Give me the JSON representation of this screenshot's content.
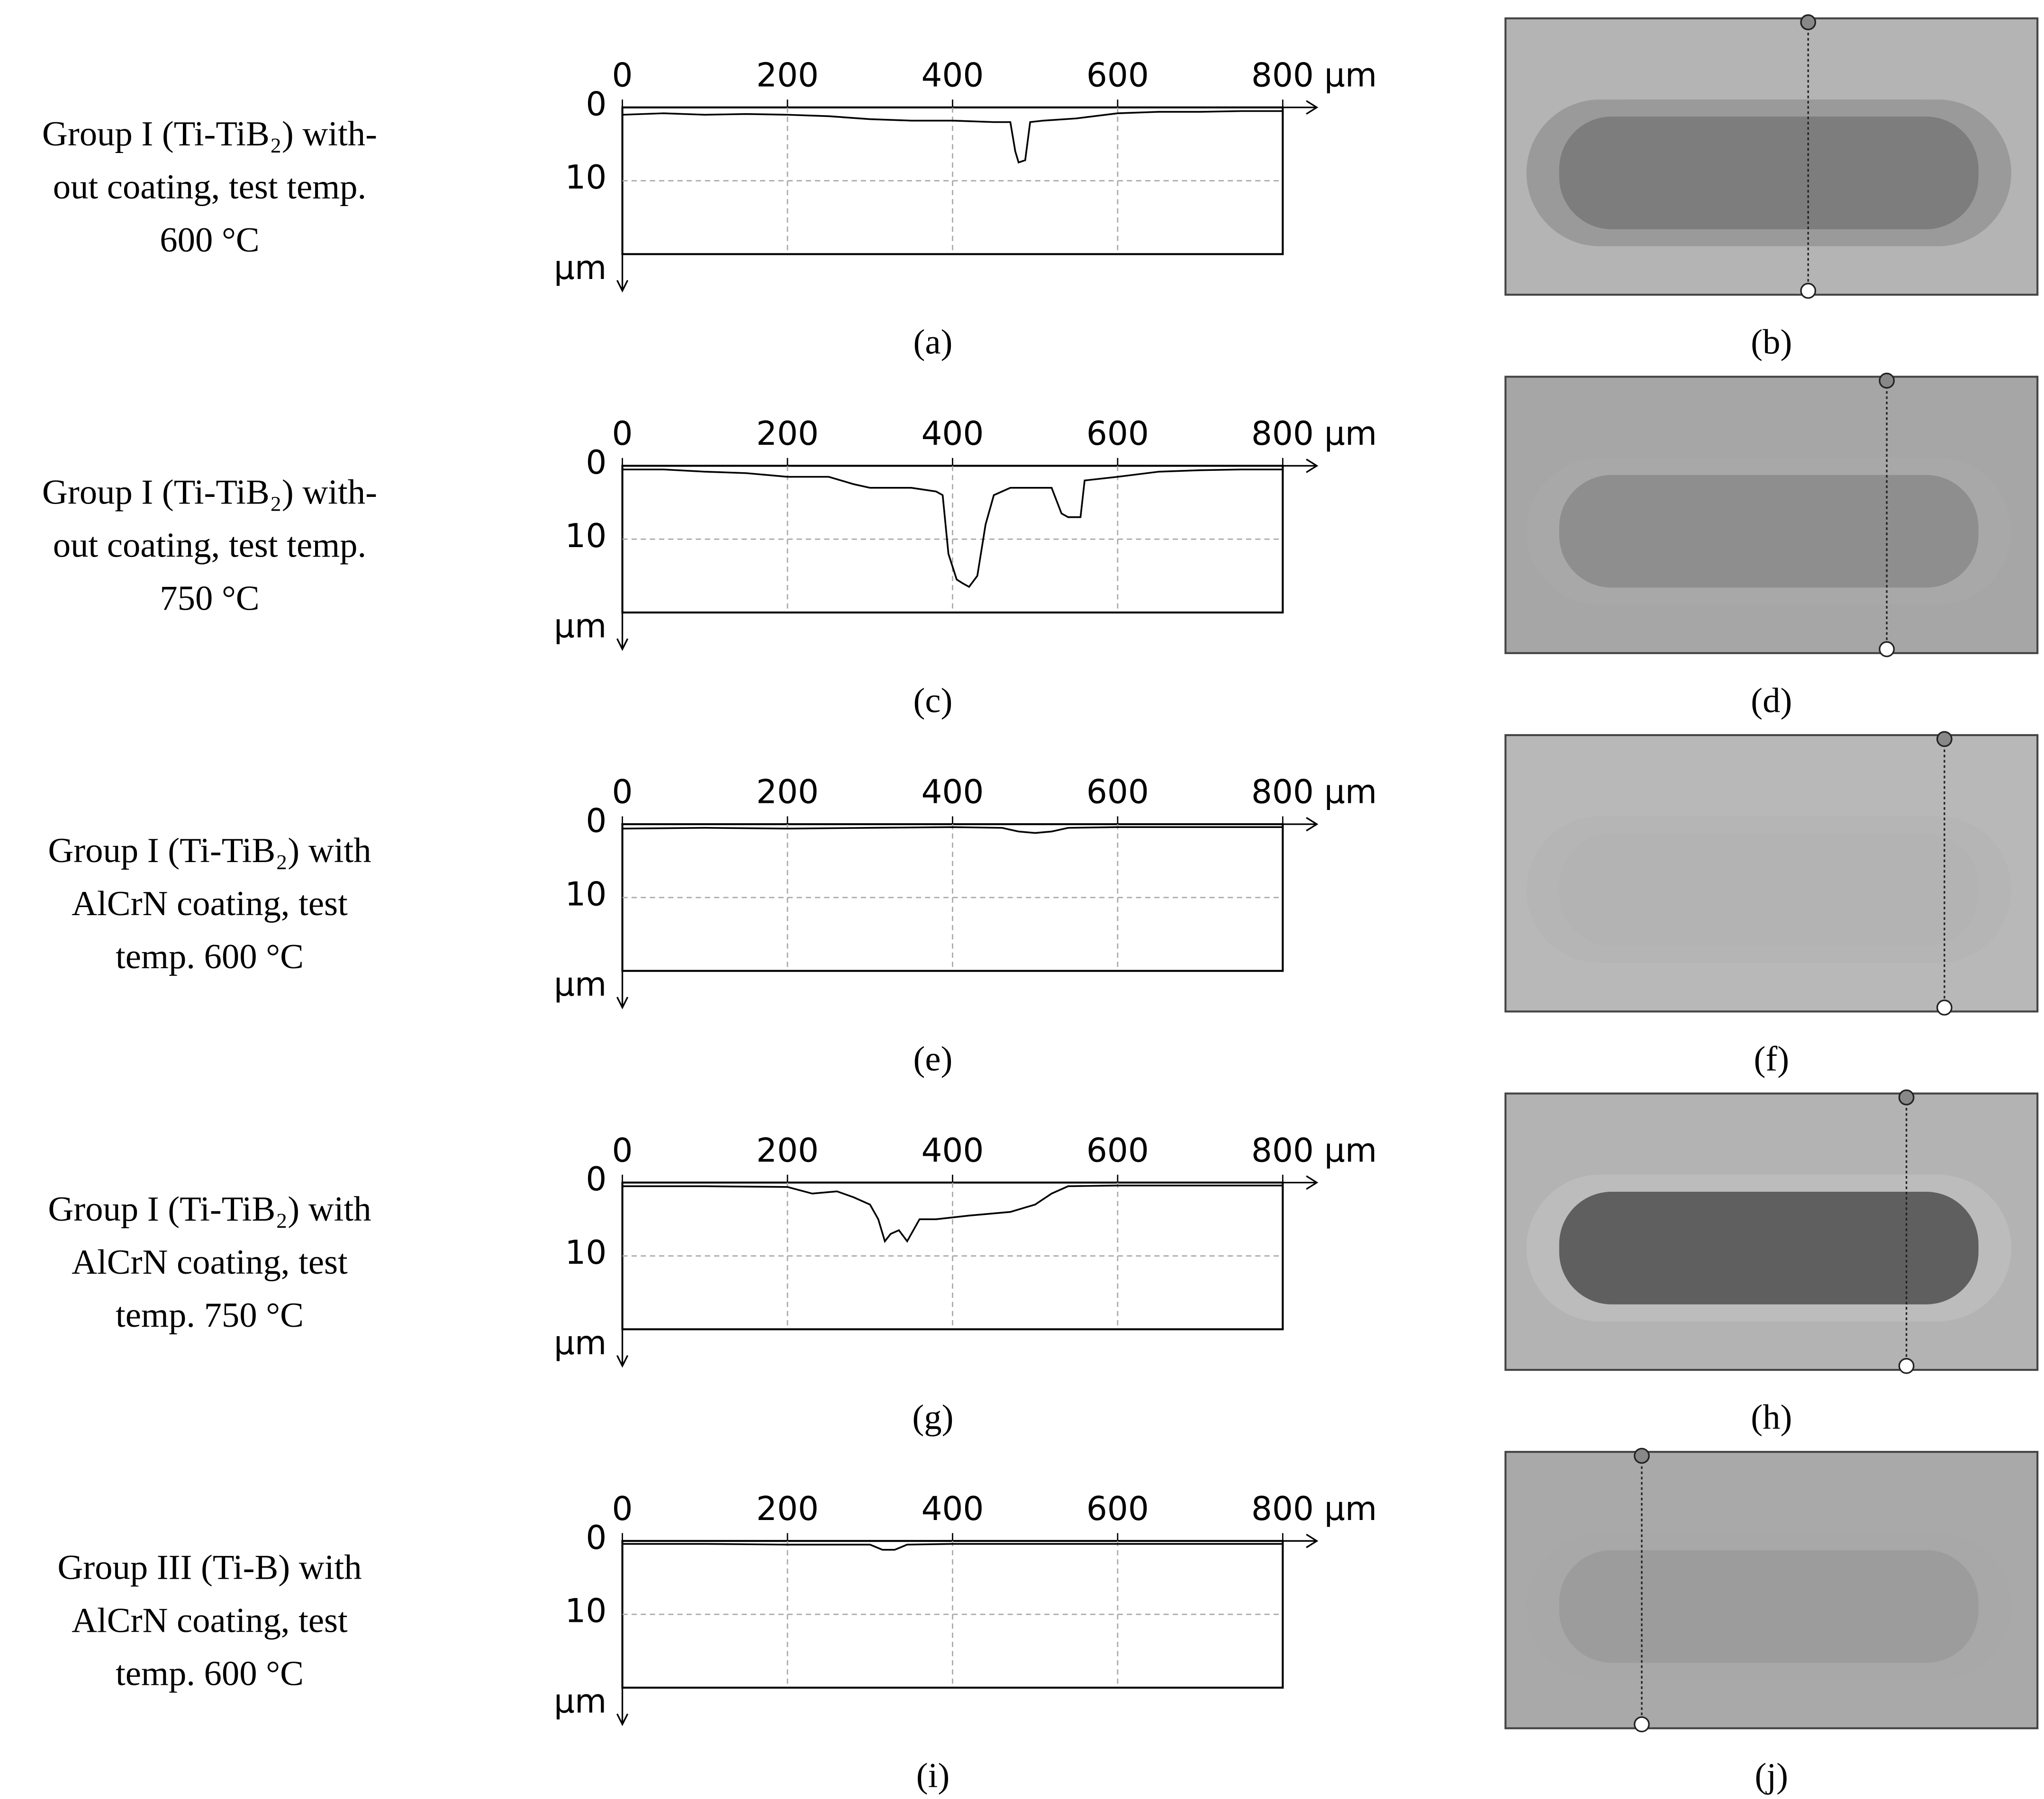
{
  "chart_data": [
    {
      "type": "line",
      "title_lines": [
        "Group I (Ti-TiB₂) with-",
        "out coating, test temp.",
        "600 °C"
      ],
      "caption": "(a)",
      "image_caption": "(b)",
      "x": [
        0,
        50,
        100,
        150,
        200,
        250,
        300,
        350,
        400,
        450,
        470,
        476,
        480,
        488,
        494,
        510,
        550,
        600,
        650,
        700,
        750,
        800
      ],
      "values": [
        1,
        0.8,
        1,
        0.9,
        1,
        1.2,
        1.6,
        1.8,
        1.8,
        2,
        2,
        6,
        7.5,
        7.2,
        2,
        1.8,
        1.5,
        0.8,
        0.6,
        0.6,
        0.5,
        0.5
      ],
      "color": "#000000",
      "xlim": [
        0,
        800
      ],
      "ylim": [
        0,
        20
      ],
      "y_inverted": true,
      "xticks": [
        0,
        200,
        400,
        600,
        {
          "value": 800,
          "label": "800 µm"
        }
      ],
      "yticks": [
        0,
        10
      ],
      "ylabel": "µm",
      "grid": true
    },
    {
      "type": "line",
      "title_lines": [
        "Group I (Ti-TiB₂) with-",
        "out coating, test temp.",
        "750 °C"
      ],
      "caption": "(c)",
      "image_caption": "(d)",
      "x": [
        0,
        50,
        100,
        150,
        200,
        250,
        280,
        300,
        350,
        380,
        388,
        395,
        405,
        412,
        420,
        430,
        440,
        450,
        470,
        520,
        532,
        540,
        555,
        560,
        600,
        650,
        700,
        750,
        800
      ],
      "values": [
        0.5,
        0.5,
        0.8,
        1,
        1.5,
        1.5,
        2.5,
        3,
        3,
        3.5,
        4,
        12,
        15.5,
        16,
        16.5,
        15,
        8,
        4,
        3,
        3,
        6.5,
        7,
        7,
        2,
        1.5,
        0.8,
        0.6,
        0.5,
        0.5
      ],
      "color": "#000000",
      "xlim": [
        0,
        800
      ],
      "ylim": [
        0,
        20
      ],
      "y_inverted": true,
      "xticks": [
        0,
        200,
        400,
        600,
        {
          "value": 800,
          "label": "800 µm"
        }
      ],
      "yticks": [
        0,
        10
      ],
      "ylabel": "µm",
      "grid": true
    },
    {
      "type": "line",
      "title_lines": [
        "Group I (Ti-TiB₂) with",
        "AlCrN coating, test",
        "temp. 600 °C"
      ],
      "caption": "(e)",
      "image_caption": "(f)",
      "x": [
        0,
        100,
        200,
        300,
        400,
        460,
        480,
        500,
        520,
        540,
        600,
        700,
        800
      ],
      "values": [
        0.6,
        0.5,
        0.6,
        0.5,
        0.4,
        0.5,
        1,
        1.2,
        1,
        0.5,
        0.4,
        0.4,
        0.4
      ],
      "color": "#000000",
      "xlim": [
        0,
        800
      ],
      "ylim": [
        0,
        20
      ],
      "y_inverted": true,
      "xticks": [
        0,
        200,
        400,
        600,
        {
          "value": 800,
          "label": "800 µm"
        }
      ],
      "yticks": [
        0,
        10
      ],
      "ylabel": "µm",
      "grid": true
    },
    {
      "type": "line",
      "title_lines": [
        "Group I (Ti-TiB₂) with",
        "AlCrN coating, test",
        "temp. 750 °C"
      ],
      "caption": "(g)",
      "image_caption": "(h)",
      "x": [
        0,
        100,
        200,
        230,
        260,
        280,
        300,
        310,
        318,
        325,
        335,
        345,
        360,
        380,
        420,
        470,
        500,
        520,
        540,
        600,
        700,
        800
      ],
      "values": [
        0.5,
        0.5,
        0.6,
        1.5,
        1.2,
        2,
        3,
        5,
        8,
        7,
        6.5,
        8,
        5,
        5,
        4.5,
        4,
        3,
        1.5,
        0.5,
        0.4,
        0.4,
        0.4
      ],
      "color": "#000000",
      "xlim": [
        0,
        800
      ],
      "ylim": [
        0,
        20
      ],
      "y_inverted": true,
      "xticks": [
        0,
        200,
        400,
        600,
        {
          "value": 800,
          "label": "800 µm"
        }
      ],
      "yticks": [
        0,
        10
      ],
      "ylabel": "µm",
      "grid": true
    },
    {
      "type": "line",
      "title_lines": [
        "Group III (Ti-B) with",
        "AlCrN coating, test",
        "temp. 600 °C"
      ],
      "caption": "(i)",
      "image_caption": "(j)",
      "x": [
        0,
        100,
        200,
        300,
        315,
        330,
        345,
        400,
        500,
        600,
        700,
        800
      ],
      "values": [
        0.4,
        0.4,
        0.5,
        0.5,
        1.2,
        1.2,
        0.5,
        0.4,
        0.4,
        0.4,
        0.4,
        0.4
      ],
      "color": "#000000",
      "xlim": [
        0,
        800
      ],
      "ylim": [
        0,
        20
      ],
      "y_inverted": true,
      "xticks": [
        0,
        200,
        400,
        600,
        {
          "value": 800,
          "label": "800 µm"
        }
      ],
      "yticks": [
        0,
        10
      ],
      "ylabel": "µm",
      "grid": true
    }
  ]
}
